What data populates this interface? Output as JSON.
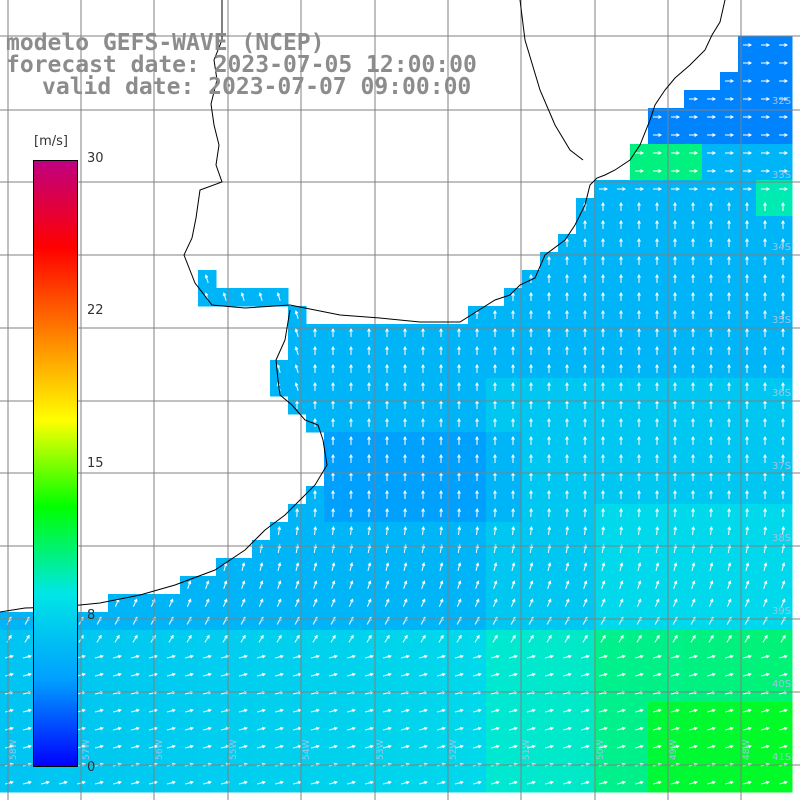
{
  "header": {
    "line1": "modelo GEFS-WAVE (NCEP)",
    "line2": "forecast date: 2023-07-05 12:00:00",
    "line3": "valid date: 2023-07-07 09:00:00"
  },
  "colorbar": {
    "unit": "[m/s]",
    "ticks": [
      "30",
      "22",
      "15",
      "8",
      "0"
    ],
    "tick_values": [
      30,
      22,
      15,
      8,
      0
    ],
    "colors": [
      "#0000ff",
      "#00a0ff",
      "#00e6e6",
      "#00ff00",
      "#ffff00",
      "#ff8000",
      "#ff0000",
      "#c00080"
    ]
  },
  "grid": {
    "lat_labels": [
      "32S",
      "33S",
      "34S",
      "35S",
      "36S",
      "37S",
      "38S",
      "39S",
      "40S",
      "41S"
    ],
    "lon_labels": [
      "58W",
      "57W",
      "56W",
      "55W",
      "54W",
      "53W",
      "52W",
      "51W",
      "50W",
      "49W",
      "48W"
    ]
  },
  "colors": {
    "land": "#ffffff",
    "coast": "#000000",
    "grid": "#808080",
    "title": "#8c8c8c",
    "arrow": "#ffffff"
  }
}
